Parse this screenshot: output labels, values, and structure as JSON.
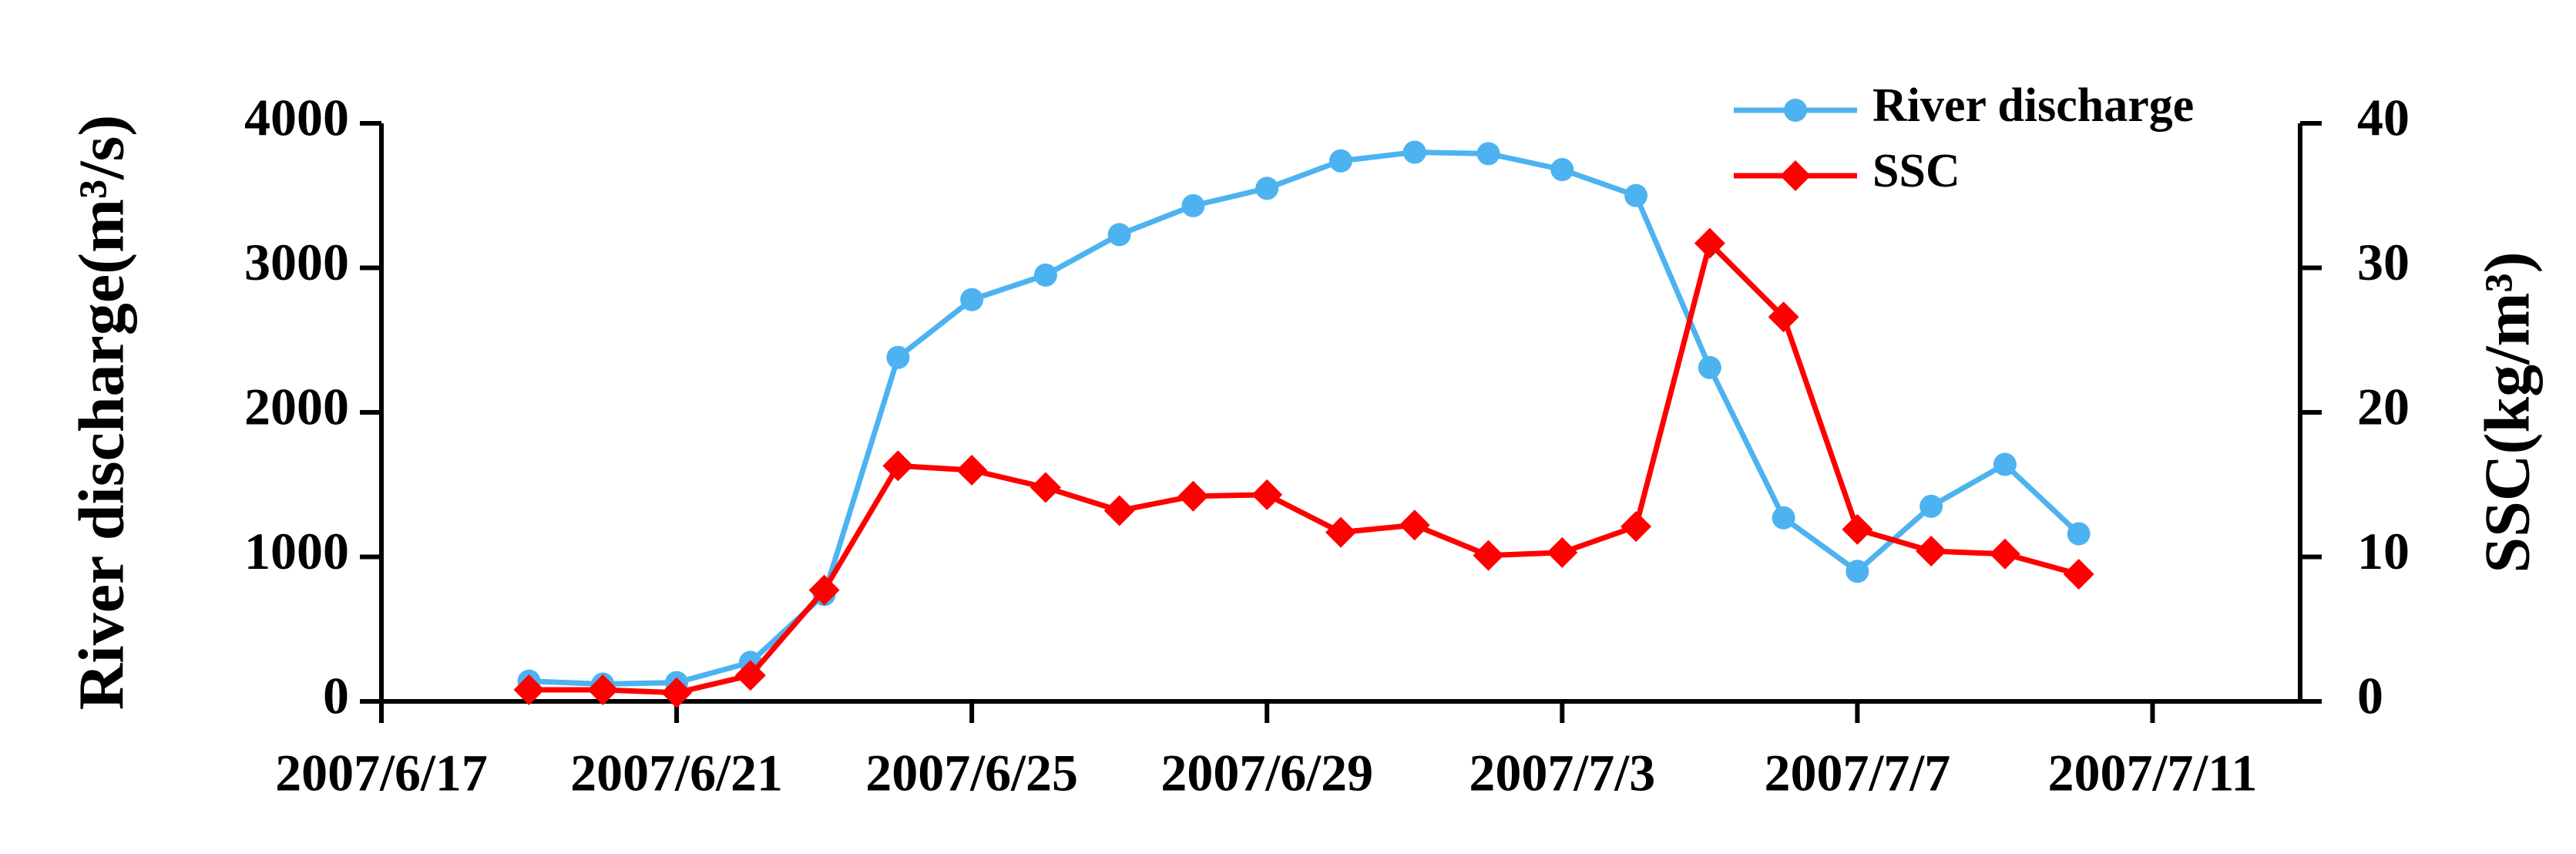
{
  "chart_data": {
    "type": "line",
    "x": [
      "2007/6/19",
      "2007/6/20",
      "2007/6/21",
      "2007/6/22",
      "2007/6/23",
      "2007/6/24",
      "2007/6/25",
      "2007/6/26",
      "2007/6/27",
      "2007/6/28",
      "2007/6/29",
      "2007/6/30",
      "2007/7/1",
      "2007/7/2",
      "2007/7/3",
      "2007/7/4",
      "2007/7/5",
      "2007/7/6",
      "2007/7/7",
      "2007/7/8",
      "2007/7/9",
      "2007/7/10"
    ],
    "series": [
      {
        "name": "River discharge",
        "color": "#4db3f0",
        "marker": "circle",
        "values": [
          140,
          120,
          130,
          270,
          740,
          2380,
          2780,
          2950,
          3230,
          3430,
          3550,
          3740,
          3800,
          3790,
          3680,
          3500,
          2310,
          1270,
          900,
          1350,
          1640,
          1160
        ]
      },
      {
        "name": "SSC",
        "color": "#ff0000",
        "marker": "diamond",
        "axis": "y2",
        "values": [
          0.8,
          0.8,
          0.6,
          1.8,
          7.7,
          16.3,
          16.0,
          14.8,
          13.2,
          14.2,
          14.3,
          11.7,
          12.2,
          10.1,
          10.3,
          12.1,
          31.7,
          26.6,
          11.9,
          10.4,
          10.2,
          8.8
        ]
      }
    ],
    "ylabel": "River discharge(m³/s)",
    "y2label": "SSC(kg/m³)",
    "xlim": [
      "2007/6/17",
      "2007/7/13"
    ],
    "xticks": [
      "2007/6/17",
      "2007/6/21",
      "2007/6/25",
      "2007/6/29",
      "2007/7/3",
      "2007/7/7",
      "2007/7/11"
    ],
    "ylim": [
      0,
      4000
    ],
    "yticks": [
      0,
      1000,
      2000,
      3000,
      4000
    ],
    "y2lim": [
      0,
      40
    ],
    "y2ticks": [
      0,
      10,
      20,
      30,
      40
    ],
    "legend": "upper right"
  }
}
